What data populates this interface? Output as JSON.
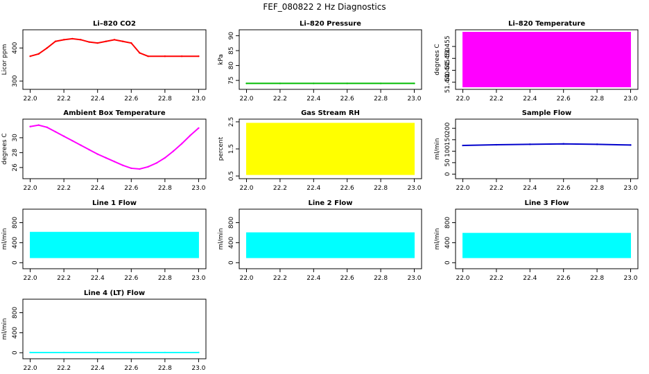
{
  "figure_title": "FEF_080822  2 Hz Diagnostics",
  "chart_data": [
    {
      "id": "co2",
      "type": "line",
      "title": "Li–820 CO2",
      "xlabel": "",
      "ylabel": "Licor ppm",
      "color": "#ff0000",
      "xlim": [
        22.0,
        23.0
      ],
      "ylim": [
        275,
        455
      ],
      "xticks": [
        "22.0",
        "22.2",
        "22.4",
        "22.6",
        "22.8",
        "23.0"
      ],
      "yticks": [
        {
          "v": 300,
          "label": "300"
        },
        {
          "v": 400,
          "label": "400"
        }
      ],
      "series": [
        {
          "x": [
            22.0,
            22.05,
            22.1,
            22.15,
            22.2,
            22.25,
            22.3,
            22.35,
            22.4,
            22.45,
            22.5,
            22.55,
            22.6,
            22.65,
            22.7,
            22.8,
            22.9,
            23.0
          ],
          "y": [
            375,
            382,
            400,
            420,
            425,
            428,
            425,
            418,
            415,
            420,
            425,
            420,
            415,
            385,
            375,
            375,
            375,
            375
          ]
        }
      ]
    },
    {
      "id": "pressure",
      "type": "line",
      "title": "Li–820 Pressure",
      "xlabel": "",
      "ylabel": "kPa",
      "color": "#00bb00",
      "xlim": [
        22.0,
        23.0
      ],
      "ylim": [
        72,
        92
      ],
      "xticks": [
        "22.0",
        "22.2",
        "22.4",
        "22.6",
        "22.8",
        "23.0"
      ],
      "yticks": [
        {
          "v": 75,
          "label": "75"
        },
        {
          "v": 80,
          "label": "80"
        },
        {
          "v": 85,
          "label": "85"
        },
        {
          "v": 90,
          "label": "90"
        }
      ],
      "series": [
        {
          "x": [
            22.0,
            22.2,
            22.4,
            22.6,
            22.8,
            23.0
          ],
          "y": [
            74.0,
            74.0,
            74.0,
            74.0,
            74.0,
            74.0
          ]
        }
      ]
    },
    {
      "id": "licor_temp",
      "type": "area",
      "title": "Li–820 Temperature",
      "xlabel": "",
      "ylabel": "degrees C",
      "color": "#ff00ff",
      "xlim": [
        22.0,
        23.0
      ],
      "ylim": [
        51.437,
        51.462
      ],
      "xticks": [
        "22.0",
        "22.2",
        "22.4",
        "22.6",
        "22.8",
        "23.0"
      ],
      "yticks": [
        {
          "v": 51.44,
          "label": "51.440"
        },
        {
          "v": 51.445,
          "label": "51.445"
        },
        {
          "v": 51.45,
          "label": "51.450"
        },
        {
          "v": 51.455,
          "label": "51.455"
        }
      ],
      "series": [
        {
          "x": [
            22.0,
            23.0
          ],
          "ymin": [
            51.438,
            51.438
          ],
          "ymax": [
            51.461,
            51.461
          ]
        }
      ]
    },
    {
      "id": "ambient_temp",
      "type": "line",
      "title": "Ambient Box Temperature",
      "xlabel": "",
      "ylabel": "degrees C",
      "color": "#ff00ff",
      "xlim": [
        22.0,
        23.0
      ],
      "ylim": [
        24.5,
        32.5
      ],
      "xticks": [
        "22.0",
        "22.2",
        "22.4",
        "22.6",
        "22.8",
        "23.0"
      ],
      "yticks": [
        {
          "v": 26,
          "label": "26"
        },
        {
          "v": 28,
          "label": "28"
        },
        {
          "v": 30,
          "label": "30"
        }
      ],
      "series": [
        {
          "x": [
            22.0,
            22.05,
            22.1,
            22.15,
            22.2,
            22.25,
            22.3,
            22.35,
            22.4,
            22.45,
            22.5,
            22.55,
            22.6,
            22.65,
            22.7,
            22.75,
            22.8,
            22.85,
            22.9,
            22.95,
            23.0
          ],
          "y": [
            31.5,
            31.7,
            31.4,
            30.8,
            30.2,
            29.6,
            29.0,
            28.4,
            27.8,
            27.3,
            26.8,
            26.3,
            25.9,
            25.8,
            26.1,
            26.6,
            27.3,
            28.2,
            29.2,
            30.3,
            31.3
          ]
        }
      ]
    },
    {
      "id": "rh",
      "type": "area",
      "title": "Gas Stream RH",
      "xlabel": "",
      "ylabel": "percent",
      "color": "#ffff00",
      "xlim": [
        22.0,
        23.0
      ],
      "ylim": [
        0.4,
        2.6
      ],
      "xticks": [
        "22.0",
        "22.2",
        "22.4",
        "22.6",
        "22.8",
        "23.0"
      ],
      "yticks": [
        {
          "v": 0.5,
          "label": "0.5"
        },
        {
          "v": 1.5,
          "label": "1.5"
        },
        {
          "v": 2.5,
          "label": "2.5"
        }
      ],
      "series": [
        {
          "x": [
            22.0,
            23.0
          ],
          "ymin": [
            0.55,
            0.55
          ],
          "ymax": [
            2.45,
            2.45
          ]
        }
      ]
    },
    {
      "id": "sample_flow",
      "type": "line",
      "title": "Sample Flow",
      "xlabel": "",
      "ylabel": "ml/min",
      "color": "#0000cc",
      "xlim": [
        22.0,
        23.0
      ],
      "ylim": [
        -20,
        240
      ],
      "xticks": [
        "22.0",
        "22.2",
        "22.4",
        "22.6",
        "22.8",
        "23.0"
      ],
      "yticks": [
        {
          "v": 0,
          "label": "0"
        },
        {
          "v": 50,
          "label": "50"
        },
        {
          "v": 100,
          "label": "100"
        },
        {
          "v": 150,
          "label": "150"
        },
        {
          "v": 200,
          "label": "200"
        }
      ],
      "series": [
        {
          "x": [
            22.0,
            22.2,
            22.4,
            22.6,
            22.8,
            23.0
          ],
          "y": [
            125,
            128,
            130,
            132,
            130,
            127
          ]
        }
      ]
    },
    {
      "id": "line1",
      "type": "area",
      "title": "Line 1 Flow",
      "xlabel": "",
      "ylabel": "ml/min",
      "color": "#00ffff",
      "xlim": [
        22.0,
        23.0
      ],
      "ylim": [
        -120,
        1070
      ],
      "xticks": [
        "22.0",
        "22.2",
        "22.4",
        "22.6",
        "22.8",
        "23.0"
      ],
      "yticks": [
        {
          "v": 0,
          "label": "0"
        },
        {
          "v": 400,
          "label": "400"
        },
        {
          "v": 800,
          "label": "800"
        }
      ],
      "series": [
        {
          "x": [
            22.0,
            23.0
          ],
          "ymin": [
            100,
            100
          ],
          "ymax": [
            610,
            610
          ]
        }
      ]
    },
    {
      "id": "line2",
      "type": "area",
      "title": "Line 2 Flow",
      "xlabel": "",
      "ylabel": "ml/min",
      "color": "#00ffff",
      "xlim": [
        22.0,
        23.0
      ],
      "ylim": [
        -120,
        1070
      ],
      "xticks": [
        "22.0",
        "22.2",
        "22.4",
        "22.6",
        "22.8",
        "23.0"
      ],
      "yticks": [
        {
          "v": 0,
          "label": "0"
        },
        {
          "v": 400,
          "label": "400"
        },
        {
          "v": 800,
          "label": "800"
        }
      ],
      "series": [
        {
          "x": [
            22.0,
            23.0
          ],
          "ymin": [
            100,
            100
          ],
          "ymax": [
            600,
            600
          ]
        }
      ]
    },
    {
      "id": "line3",
      "type": "area",
      "title": "Line 3 Flow",
      "xlabel": "",
      "ylabel": "ml/min",
      "color": "#00ffff",
      "xlim": [
        22.0,
        23.0
      ],
      "ylim": [
        -120,
        1070
      ],
      "xticks": [
        "22.0",
        "22.2",
        "22.4",
        "22.6",
        "22.8",
        "23.0"
      ],
      "yticks": [
        {
          "v": 0,
          "label": "0"
        },
        {
          "v": 400,
          "label": "400"
        },
        {
          "v": 800,
          "label": "800"
        }
      ],
      "series": [
        {
          "x": [
            22.0,
            23.0
          ],
          "ymin": [
            100,
            100
          ],
          "ymax": [
            590,
            590
          ]
        }
      ]
    },
    {
      "id": "line4",
      "type": "line",
      "title": "Line 4 (LT) Flow",
      "xlabel": "",
      "ylabel": "ml/min",
      "color": "#00ffff",
      "xlim": [
        22.0,
        23.0
      ],
      "ylim": [
        -120,
        1070
      ],
      "xticks": [
        "22.0",
        "22.2",
        "22.4",
        "22.6",
        "22.8",
        "23.0"
      ],
      "yticks": [
        {
          "v": 0,
          "label": "0"
        },
        {
          "v": 400,
          "label": "400"
        },
        {
          "v": 800,
          "label": "800"
        }
      ],
      "series": [
        {
          "x": [
            22.0,
            22.2,
            22.4,
            22.6,
            22.8,
            23.0
          ],
          "y": [
            5,
            5,
            5,
            5,
            5,
            5
          ]
        }
      ]
    }
  ]
}
